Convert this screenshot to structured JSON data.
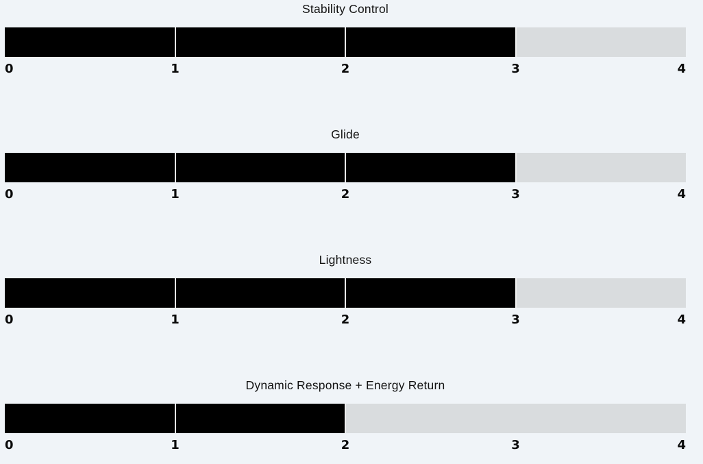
{
  "page": {
    "background_color": "#f0f4f8"
  },
  "style": {
    "fill_color": "#000000",
    "track_color": "#d9dcde",
    "divider_color": "#f0f0f0",
    "text_color": "#131313"
  },
  "chart_data": [
    {
      "type": "bar",
      "title": "Stability Control",
      "value": 3,
      "max": 4,
      "xlim": [
        0,
        4
      ],
      "tick_labels": [
        "0",
        "1",
        "2",
        "3",
        "4"
      ],
      "orientation": "horizontal",
      "grid": false,
      "legend": false
    },
    {
      "type": "bar",
      "title": "Glide",
      "value": 3,
      "max": 4,
      "xlim": [
        0,
        4
      ],
      "tick_labels": [
        "0",
        "1",
        "2",
        "3",
        "4"
      ],
      "orientation": "horizontal",
      "grid": false,
      "legend": false
    },
    {
      "type": "bar",
      "title": "Lightness",
      "value": 3,
      "max": 4,
      "xlim": [
        0,
        4
      ],
      "tick_labels": [
        "0",
        "1",
        "2",
        "3",
        "4"
      ],
      "orientation": "horizontal",
      "grid": false,
      "legend": false
    },
    {
      "type": "bar",
      "title": "Dynamic Response + Energy Return",
      "value": 2,
      "max": 4,
      "xlim": [
        0,
        4
      ],
      "tick_labels": [
        "0",
        "1",
        "2",
        "3",
        "4"
      ],
      "orientation": "horizontal",
      "grid": false,
      "legend": false
    }
  ]
}
